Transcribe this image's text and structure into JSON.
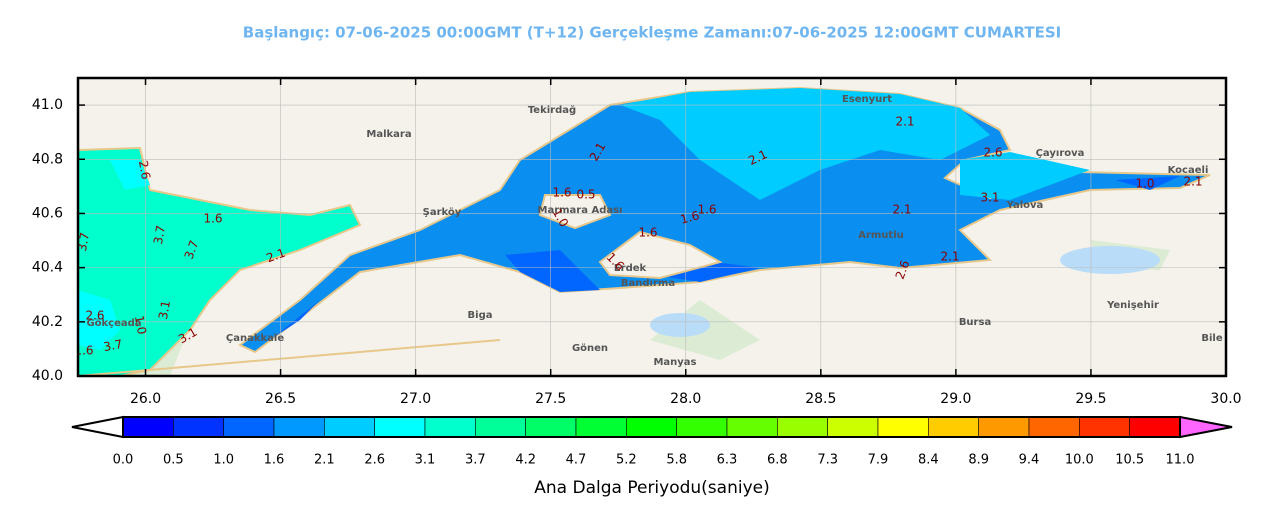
{
  "title": "Başlangıç: 07-06-2025 00:00GMT (T+12)  Gerçekleşme Zamanı:07-06-2025 12:00GMT CUMARTESI",
  "map": {
    "xlim": [
      25.75,
      30.0
    ],
    "ylim": [
      40.0,
      41.1
    ],
    "xticks": [
      {
        "value": 26,
        "label": "26.0"
      },
      26.5,
      {
        "value": 27,
        "label": "27.0"
      },
      27.5,
      {
        "value": 28,
        "label": "28.0"
      },
      28.5,
      {
        "value": 29,
        "label": "29.0"
      },
      29.5,
      {
        "value": 30,
        "label": "30.0"
      }
    ],
    "yticks": [
      {
        "value": 40,
        "label": "40.0"
      },
      40.2,
      40.4,
      40.6,
      40.8,
      {
        "value": 41,
        "label": "41.0"
      }
    ],
    "places": [
      "Tekirdağ",
      "Çanakkale",
      "Bursa",
      "Yalova",
      "Kocaeli",
      "Bandırma",
      "Gönen",
      "Esenyurt",
      "Çayırova",
      "Armutlu",
      "Erdek",
      "Malkara",
      "Şarköy",
      "Biga",
      "Manyas",
      "Gökçeada",
      "Bile",
      "Yenişehir",
      "Marmara Adası"
    ],
    "contour_labels": [
      "2.1",
      "1.6",
      "0.5",
      "2.1",
      "2.1",
      "2.6",
      "3.1",
      "1.0",
      "2.1",
      "2.1",
      "1.6",
      "1.6",
      "1.6",
      "1.6",
      "2.1",
      "2.6",
      "1.6",
      "2.1",
      "3.7",
      "3.7",
      "3.1",
      "3.1",
      "2.6",
      "3.7",
      "1.0",
      "3.7",
      "1.6",
      "2.6",
      "1.0"
    ]
  },
  "colorbar": {
    "label": "Ana Dalga Periyodu(saniye)",
    "levels": [
      {
        "value": 0,
        "label": "0.0"
      },
      0.5,
      {
        "value": 1,
        "label": "1.0"
      },
      1.6,
      2.1,
      2.6,
      3.1,
      3.7,
      4.2,
      4.7,
      5.2,
      5.8,
      6.3,
      6.8,
      7.3,
      7.9,
      8.4,
      8.9,
      9.4,
      {
        "value": 10,
        "label": "10.0"
      },
      10.5,
      {
        "value": 11,
        "label": "11.0"
      }
    ],
    "colors": [
      "#0000ff",
      "#0033ff",
      "#0066ff",
      "#0099ff",
      "#00ccff",
      "#00ffff",
      "#00ffcc",
      "#00ff99",
      "#00ff66",
      "#00ff33",
      "#00ff00",
      "#33ff00",
      "#66ff00",
      "#99ff00",
      "#ccff00",
      "#ffff00",
      "#ffcc00",
      "#ff9900",
      "#ff6600",
      "#ff3300",
      "#ff0000"
    ],
    "under_color": "#ffffff",
    "over_color": "#ff66ff"
  }
}
